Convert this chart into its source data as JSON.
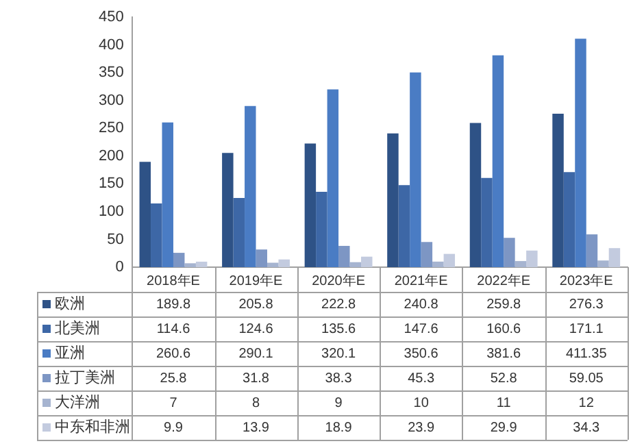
{
  "chart_data": {
    "type": "bar",
    "categories": [
      "2018年E",
      "2019年E",
      "2020年E",
      "2021年E",
      "2022年E",
      "2023年E"
    ],
    "series": [
      {
        "name": "欧洲",
        "color": "#2e5286",
        "values": [
          189.8,
          205.8,
          222.8,
          240.8,
          259.8,
          276.3
        ]
      },
      {
        "name": "北美洲",
        "color": "#3d67a6",
        "values": [
          114.6,
          124.6,
          135.6,
          147.6,
          160.6,
          171.1
        ]
      },
      {
        "name": "亚洲",
        "color": "#4a7cc4",
        "values": [
          260.6,
          290.1,
          320.1,
          350.6,
          381.6,
          411.35
        ]
      },
      {
        "name": "拉丁美洲",
        "color": "#7d96c4",
        "values": [
          25.8,
          31.8,
          38.3,
          45.3,
          52.8,
          59.05
        ]
      },
      {
        "name": "大洋洲",
        "color": "#a6b4d0",
        "values": [
          7,
          8,
          9,
          10,
          11,
          12
        ]
      },
      {
        "name": "中东和非洲",
        "color": "#c3cbdf",
        "values": [
          9.9,
          13.9,
          18.9,
          23.9,
          29.9,
          34.3
        ]
      }
    ],
    "ylim": [
      0,
      450
    ],
    "yticks": [
      0,
      50,
      100,
      150,
      200,
      250,
      300,
      350,
      400,
      450
    ],
    "grid": false,
    "legend": "bottom",
    "data_labels": true
  }
}
